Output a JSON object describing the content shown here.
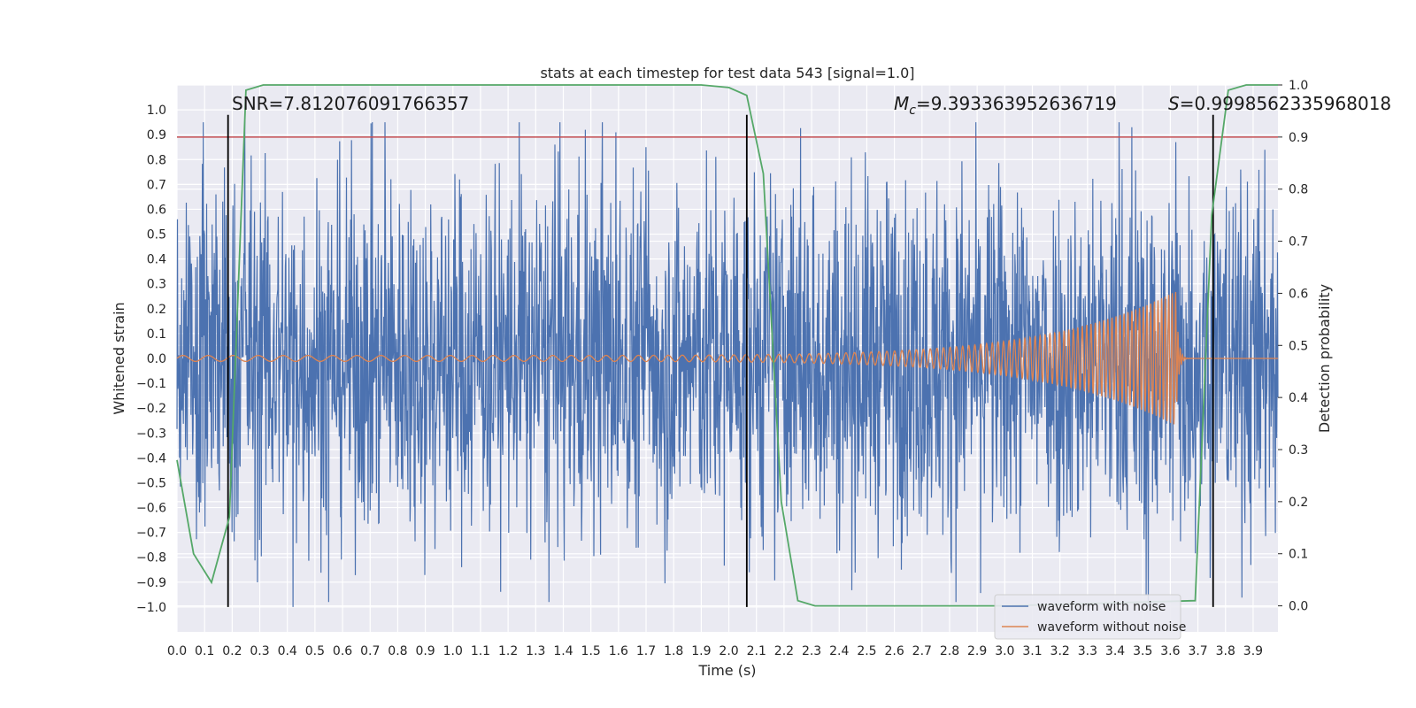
{
  "chart_data": {
    "type": "line",
    "title": "stats at each timestep for test data 543 [signal=1.0]",
    "xlabel": "Time (s)",
    "ylabel_left": "Whitened strain",
    "ylabel_right": "Detection probability",
    "xlim": [
      0.0,
      3.99
    ],
    "ylim_left": [
      -1.1,
      1.1
    ],
    "ylim_right": [
      -0.05,
      1.0
    ],
    "x_ticks": [
      "0.0",
      "0.1",
      "0.2",
      "0.3",
      "0.4",
      "0.5",
      "0.6",
      "0.7",
      "0.8",
      "0.9",
      "1.0",
      "1.1",
      "1.2",
      "1.3",
      "1.4",
      "1.5",
      "1.6",
      "1.7",
      "1.8",
      "1.9",
      "2.0",
      "2.1",
      "2.2",
      "2.3",
      "2.4",
      "2.5",
      "2.6",
      "2.7",
      "2.8",
      "2.9",
      "3.0",
      "3.1",
      "3.2",
      "3.3",
      "3.4",
      "3.5",
      "3.6",
      "3.7",
      "3.8",
      "3.9"
    ],
    "y_ticks_left": [
      "1.0",
      "0.9",
      "0.8",
      "0.7",
      "0.6",
      "0.5",
      "0.4",
      "0.3",
      "0.2",
      "0.1",
      "0.0",
      "−0.1",
      "−0.2",
      "−0.3",
      "−0.4",
      "−0.5",
      "−0.6",
      "−0.7",
      "−0.8",
      "−0.9",
      "−1.0"
    ],
    "y_ticks_right": [
      "1.0",
      "0.9",
      "0.8",
      "0.7",
      "0.6",
      "0.5",
      "0.4",
      "0.3",
      "0.2",
      "0.1",
      "0.0"
    ],
    "grid": true,
    "legend_position": "bottom-right",
    "annotations": {
      "snr": "SNR=7.812076091766357",
      "mc_symbol": "M",
      "mc_sub": "c",
      "mc_value": "=9.393363952636719",
      "s_symbol": "S",
      "s_value": "=0.9998562335968018"
    },
    "threshold_right": 0.9,
    "vertical_markers_x": [
      0.185,
      2.065,
      3.755
    ],
    "series": [
      {
        "name": "waveform with noise",
        "color": "#4c72b0",
        "axis": "left",
        "description_values": "noise-like strain between about -1.0 and 1.0",
        "peaks": [
          [
            0.42,
            -1.0
          ],
          [
            0.245,
            0.97
          ],
          [
            1.48,
            0.92
          ],
          [
            3.46,
            0.93
          ],
          [
            3.62,
            0.87
          ],
          [
            3.52,
            -1.0
          ],
          [
            1.37,
            0.86
          ],
          [
            1.7,
            0.85
          ]
        ]
      },
      {
        "name": "waveform without noise",
        "color": "#dd8452",
        "axis": "left",
        "chirp": {
          "t_start": 0.0,
          "t_merge": 3.62,
          "amp_start": 0.012,
          "amp_peak": 0.27,
          "f_start": 11,
          "f_end": 80
        }
      },
      {
        "name": "detection probability",
        "color": "#55a868",
        "axis": "right",
        "x": [
          0.0,
          0.06,
          0.125,
          0.19,
          0.25,
          0.3125,
          1.0,
          1.9,
          2.0,
          2.065,
          2.125,
          2.19,
          2.25,
          2.3125,
          3.0,
          3.69,
          3.75,
          3.81,
          3.875,
          3.99
        ],
        "y": [
          0.28,
          0.1,
          0.045,
          0.17,
          0.99,
          1.0,
          1.0,
          1.0,
          0.995,
          0.98,
          0.83,
          0.2,
          0.01,
          0.0,
          0.0,
          0.01,
          0.75,
          0.99,
          1.0,
          1.0
        ]
      }
    ]
  }
}
